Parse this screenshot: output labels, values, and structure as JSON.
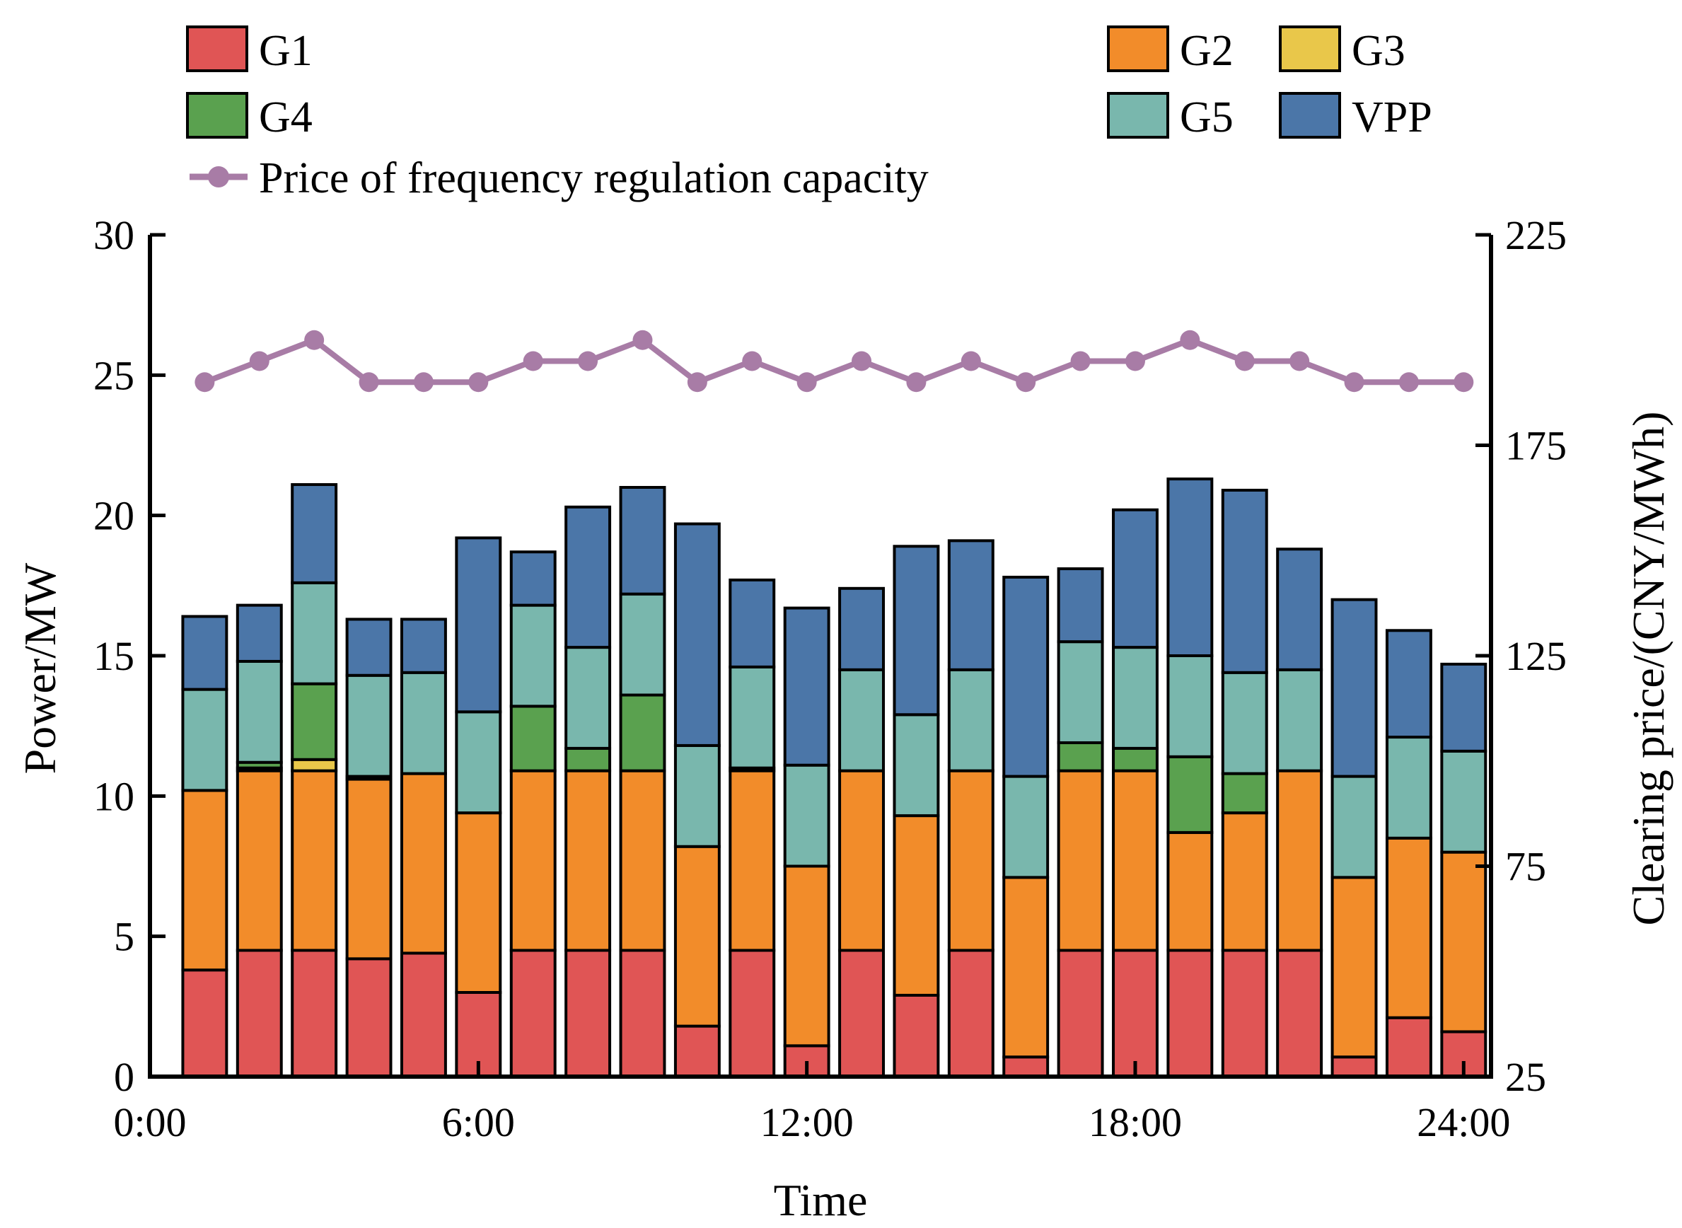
{
  "chart_data": {
    "type": "bar",
    "stacked": true,
    "x": [
      1,
      2,
      3,
      4,
      5,
      6,
      7,
      8,
      9,
      10,
      11,
      12,
      13,
      14,
      15,
      16,
      17,
      18,
      19,
      20,
      21,
      22,
      23,
      24
    ],
    "series": [
      {
        "name": "G1",
        "color": "#e05555",
        "values": [
          3.8,
          4.5,
          4.5,
          4.2,
          4.4,
          3.0,
          4.5,
          4.5,
          4.5,
          1.8,
          4.5,
          1.1,
          4.5,
          2.9,
          4.5,
          0.7,
          4.5,
          4.5,
          4.5,
          4.5,
          4.5,
          0.7,
          2.1,
          1.6
        ]
      },
      {
        "name": "G2",
        "color": "#f28c2a",
        "values": [
          6.4,
          6.4,
          6.4,
          6.4,
          6.4,
          6.4,
          6.4,
          6.4,
          6.4,
          6.4,
          6.4,
          6.4,
          6.4,
          6.4,
          6.4,
          6.4,
          6.4,
          6.4,
          4.2,
          4.9,
          6.4,
          6.4,
          6.4,
          6.4
        ]
      },
      {
        "name": "G3",
        "color": "#e9c74a",
        "values": [
          0,
          0.1,
          0.4,
          0,
          0,
          0,
          0,
          0,
          0,
          0,
          0,
          0,
          0,
          0,
          0,
          0,
          0,
          0,
          0,
          0,
          0,
          0,
          0,
          0
        ]
      },
      {
        "name": "G4",
        "color": "#5aa14f",
        "values": [
          0,
          0.2,
          2.7,
          0.1,
          0,
          0,
          2.3,
          0.8,
          2.7,
          0,
          0.1,
          0,
          0,
          0,
          0,
          0,
          1.0,
          0.8,
          2.7,
          1.4,
          0,
          0,
          0,
          0
        ]
      },
      {
        "name": "G5",
        "color": "#79b7ad",
        "values": [
          3.6,
          3.6,
          3.6,
          3.6,
          3.6,
          3.6,
          3.6,
          3.6,
          3.6,
          3.6,
          3.6,
          3.6,
          3.6,
          3.6,
          3.6,
          3.6,
          3.6,
          3.6,
          3.6,
          3.6,
          3.6,
          3.6,
          3.6,
          3.6
        ]
      },
      {
        "name": "VPP",
        "color": "#4b76a8",
        "values": [
          2.6,
          2.0,
          3.5,
          2.0,
          1.9,
          6.2,
          1.9,
          5.0,
          3.8,
          7.9,
          3.1,
          5.6,
          2.9,
          6.0,
          4.6,
          7.1,
          2.6,
          4.9,
          6.3,
          6.5,
          4.3,
          6.3,
          3.8,
          3.1
        ]
      }
    ],
    "price": {
      "name": "Price of frequency regulation capacity",
      "color": "#a87ca6",
      "values": [
        190,
        195,
        200,
        190,
        190,
        190,
        195,
        195,
        200,
        190,
        195,
        190,
        195,
        190,
        195,
        190,
        195,
        195,
        200,
        195,
        195,
        190,
        190,
        190
      ]
    },
    "xlim": [
      0,
      24.5
    ],
    "xticks": [
      0,
      6,
      12,
      18,
      24
    ],
    "xtick_labels": [
      "0:00",
      "6:00",
      "12:00",
      "18:00",
      "24:00"
    ],
    "ylim": [
      0,
      30
    ],
    "yticks": [
      0,
      5,
      10,
      15,
      20,
      25,
      30
    ],
    "ytick_labels": [
      "0",
      "5",
      "10",
      "15",
      "20",
      "25",
      "30"
    ],
    "y2lim": [
      25,
      225
    ],
    "y2ticks": [
      25,
      75,
      125,
      175,
      225
    ],
    "y2tick_labels": [
      "25",
      "75",
      "125",
      "175",
      "225"
    ],
    "xlabel": "Time",
    "ylabel": "Power/MW",
    "y2label": "Clearing price/(CNY/MWh)",
    "legend_position": "top"
  }
}
